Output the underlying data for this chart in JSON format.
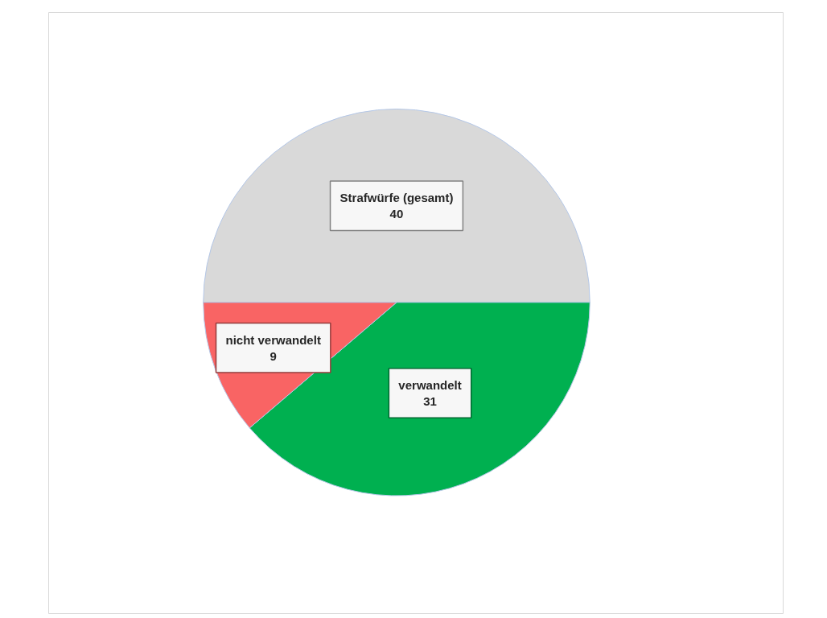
{
  "chart_data": {
    "type": "pie",
    "categories": [
      "Strafwürfe (gesamt)",
      "verwandelt",
      "nicht verwandelt"
    ],
    "values": [
      40,
      31,
      9
    ],
    "colors": [
      "#d9d9d9",
      "#00b050",
      "#f96464"
    ],
    "data_labels": true
  }
}
